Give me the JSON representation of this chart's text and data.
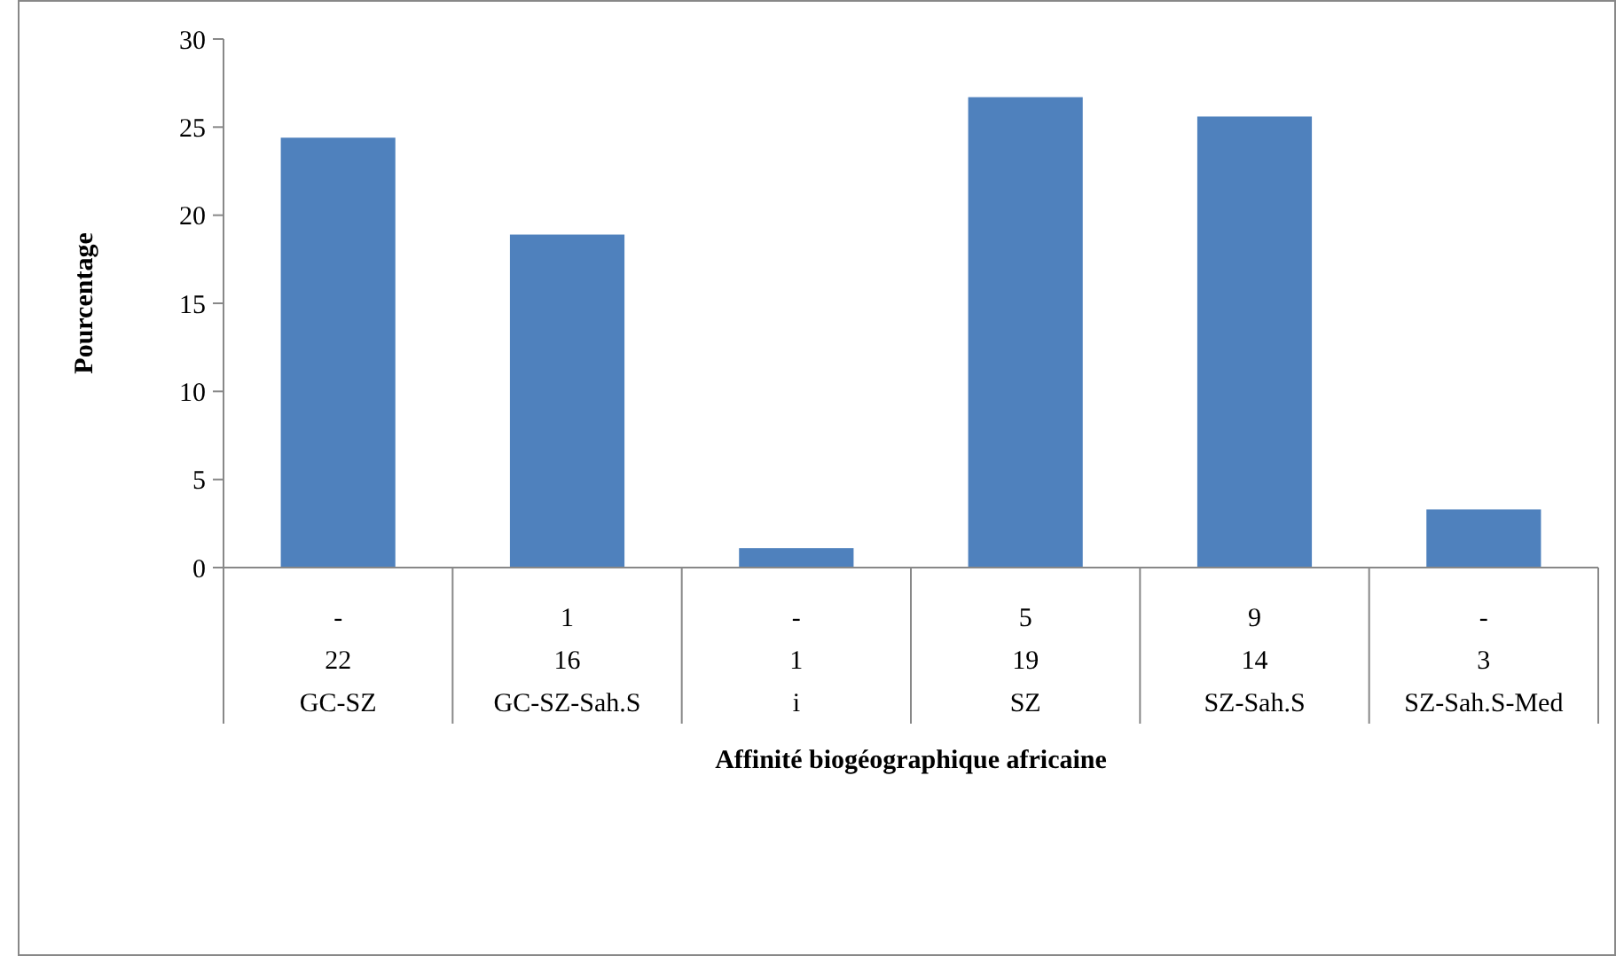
{
  "chart_data": {
    "type": "bar",
    "xlabel": "Affinité biogéographique africaine",
    "ylabel": "Pourcentage",
    "categories": [
      "-\n22\nGC-SZ",
      "1\n16\nGC-SZ-Sah.S",
      "-\n1\ni",
      "5\n19\nSZ",
      "9\n14\nSZ-Sah.S",
      "-\n3\nSZ-Sah.S-Med"
    ],
    "values": [
      24.4,
      18.9,
      1.1,
      26.7,
      25.6,
      3.3
    ],
    "color": "#4f81bd",
    "ylim": [
      0,
      30
    ],
    "yticks": [
      0,
      5,
      10,
      15,
      20,
      25,
      30
    ],
    "grid": false
  }
}
